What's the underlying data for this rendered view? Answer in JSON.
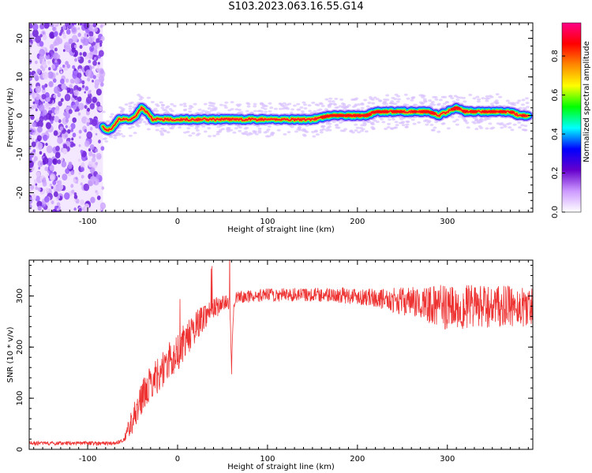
{
  "title": "S103.2023.063.16.55.G14",
  "chart_data": [
    {
      "type": "heatmap",
      "xlabel": "Height of straight line (km)",
      "ylabel": "Frequency (Hz)",
      "xlim": [
        -165,
        395
      ],
      "ylim": [
        -25,
        24
      ],
      "x_ticks": [
        -100,
        0,
        100,
        200,
        300
      ],
      "y_ticks": [
        -20,
        -10,
        0,
        10,
        20
      ],
      "noise_region_x": [
        -165,
        -83
      ],
      "ridge_trace": {
        "x": [
          -83,
          -78,
          -72,
          -66,
          -60,
          -52,
          -46,
          -40,
          -34,
          -28,
          -20,
          0,
          40,
          80,
          120,
          150,
          170,
          190,
          200,
          210,
          220,
          230,
          240,
          250,
          260,
          270,
          280,
          290,
          300,
          310,
          320,
          330,
          340,
          350,
          360,
          370,
          380,
          390
        ],
        "y": [
          -3,
          -4,
          -3,
          -1,
          -1,
          -1,
          0,
          2,
          1,
          -1,
          -1,
          -1,
          -1,
          -1,
          -1,
          -1,
          0,
          0,
          0,
          0,
          1,
          1,
          1,
          1,
          1,
          1,
          1,
          0,
          1,
          2,
          1,
          1,
          1,
          1,
          1,
          1,
          0,
          0
        ]
      },
      "colorbar": {
        "label": "Normalized spectral amplitude",
        "ticks": [
          "0.0",
          "0.2",
          "0.4",
          "0.6",
          "0.8"
        ],
        "range": [
          0,
          0.97
        ],
        "colors": [
          "#ffffff",
          "#cc99ff",
          "#6600cc",
          "#0000ff",
          "#00ffff",
          "#00ff00",
          "#ffff00",
          "#ff8800",
          "#ff0000",
          "#ff0088"
        ]
      }
    },
    {
      "type": "line",
      "xlabel": "Height of straight line (km)",
      "ylabel": "SNR (10 * v/v)",
      "xlim": [
        -165,
        395
      ],
      "ylim": [
        0,
        370
      ],
      "x_ticks": [
        -100,
        0,
        100,
        200,
        300
      ],
      "y_ticks": [
        0,
        100,
        200,
        300
      ],
      "series_color": "#ee3333",
      "trend": {
        "x": [
          -165,
          -100,
          -70,
          -60,
          -50,
          -40,
          -30,
          -20,
          -10,
          0,
          10,
          20,
          30,
          40,
          50,
          58,
          60,
          62,
          65,
          70,
          100,
          150,
          200,
          250,
          300,
          350,
          395
        ],
        "y": [
          12,
          12,
          12,
          18,
          60,
          100,
          130,
          150,
          170,
          190,
          215,
          240,
          262,
          275,
          285,
          288,
          150,
          270,
          295,
          298,
          302,
          303,
          300,
          290,
          278,
          278,
          280
        ]
      },
      "noise_amplitude": {
        "x": [
          -165,
          -60,
          -50,
          0,
          60,
          150,
          220,
          260,
          300,
          395
        ],
        "y": [
          4,
          4,
          30,
          40,
          12,
          14,
          18,
          30,
          45,
          40
        ]
      }
    }
  ]
}
